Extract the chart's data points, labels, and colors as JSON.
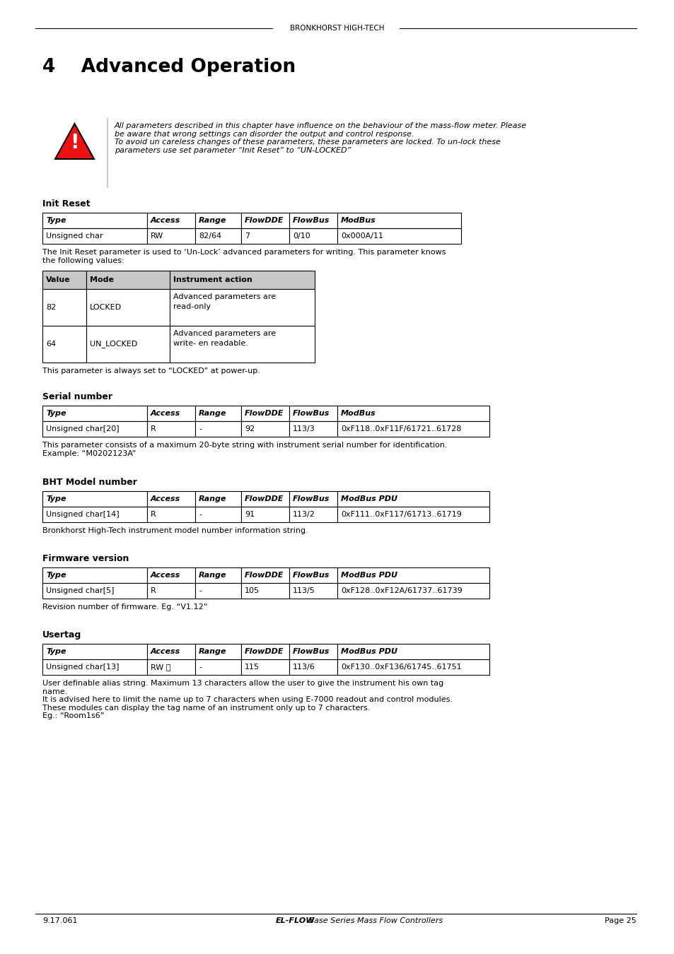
{
  "header_text": "BRONKHORST HIGH-TECH",
  "chapter_number": "4",
  "chapter_title": "Advanced Operation",
  "warning_text": "All parameters described in this chapter have influence on the behaviour of the mass-flow meter. Please\nbe aware that wrong settings can disorder the output and control response.\nTo avoid un careless changes of these parameters, these parameters are locked. To un-lock these\nparameters use set parameter “Init Reset” to “UN-LOCKED”",
  "sections": [
    {
      "title": "Init Reset",
      "table_header": [
        "Type",
        "Access",
        "Range",
        "FlowDDE",
        "FlowBus",
        "ModBus"
      ],
      "table_rows": [
        [
          "Unsigned char",
          "RW",
          "82/64",
          "7",
          "0/10",
          "0x000A/11"
        ]
      ],
      "description": "The Init Reset parameter is used to ‘Un-Lock’ advanced parameters for writing. This parameter knows\nthe following values:",
      "sub_table": {
        "header": [
          "Value",
          "Mode",
          "Instrument action"
        ],
        "rows": [
          [
            "82",
            "LOCKED",
            "Advanced parameters are\nread-only"
          ],
          [
            "64",
            "UN_LOCKED",
            "Advanced parameters are\nwrite- en readable."
          ]
        ]
      },
      "note": "This parameter is always set to “LOCKED” at power-up."
    },
    {
      "title": "Serial number",
      "table_header": [
        "Type",
        "Access",
        "Range",
        "FlowDDE",
        "FlowBus",
        "ModBus"
      ],
      "table_rows": [
        [
          "Unsigned char[20]",
          "R",
          "-",
          "92",
          "113/3",
          "0xF118..0xF11F/61721..61728"
        ]
      ],
      "description": "This parameter consists of a maximum 20-byte string with instrument serial number for identification.\nExample: “M0202123A”",
      "sub_table": null,
      "note": null
    },
    {
      "title": "BHT Model number",
      "table_header": [
        "Type",
        "Access",
        "Range",
        "FlowDDE",
        "FlowBus",
        "ModBus PDU"
      ],
      "table_rows": [
        [
          "Unsigned char[14]",
          "R",
          "-",
          "91",
          "113/2",
          "0xF111..0xF117/61713..61719"
        ]
      ],
      "description": "Bronkhorst High-Tech instrument model number information string.",
      "sub_table": null,
      "note": null
    },
    {
      "title": "Firmware version",
      "table_header": [
        "Type",
        "Access",
        "Range",
        "FlowDDE",
        "FlowBus",
        "ModBus PDU"
      ],
      "table_rows": [
        [
          "Unsigned char[5]",
          "R",
          "-",
          "105",
          "113/5",
          "0xF128..0xF12A/61737..61739"
        ]
      ],
      "description": "Revision number of firmware. Eg. “V1.12”",
      "sub_table": null,
      "note": null
    },
    {
      "title": "Usertag",
      "table_header": [
        "Type",
        "Access",
        "Range",
        "FlowDDE",
        "FlowBus",
        "ModBus PDU"
      ],
      "table_rows": [
        [
          "Unsigned char[13]",
          "RW 🔓",
          "-",
          "115",
          "113/6",
          "0xF130..0xF136/61745..61751"
        ]
      ],
      "description": "User definable alias string. Maximum 13 characters allow the user to give the instrument his own tag\nname.\nIt is advised here to limit the name up to 7 characters when using E-7000 readout and control modules.\nThese modules can display the tag name of an instrument only up to 7 characters.\nEg.: “Room1s6”",
      "sub_table": null,
      "note": null
    }
  ],
  "footer_left": "9.17.061",
  "footer_center_bold": "EL-FLOW",
  "footer_center_italic": " Base Series Mass Flow Controllers",
  "footer_right": "Page 25",
  "bg_color": "#ffffff",
  "text_color": "#000000"
}
